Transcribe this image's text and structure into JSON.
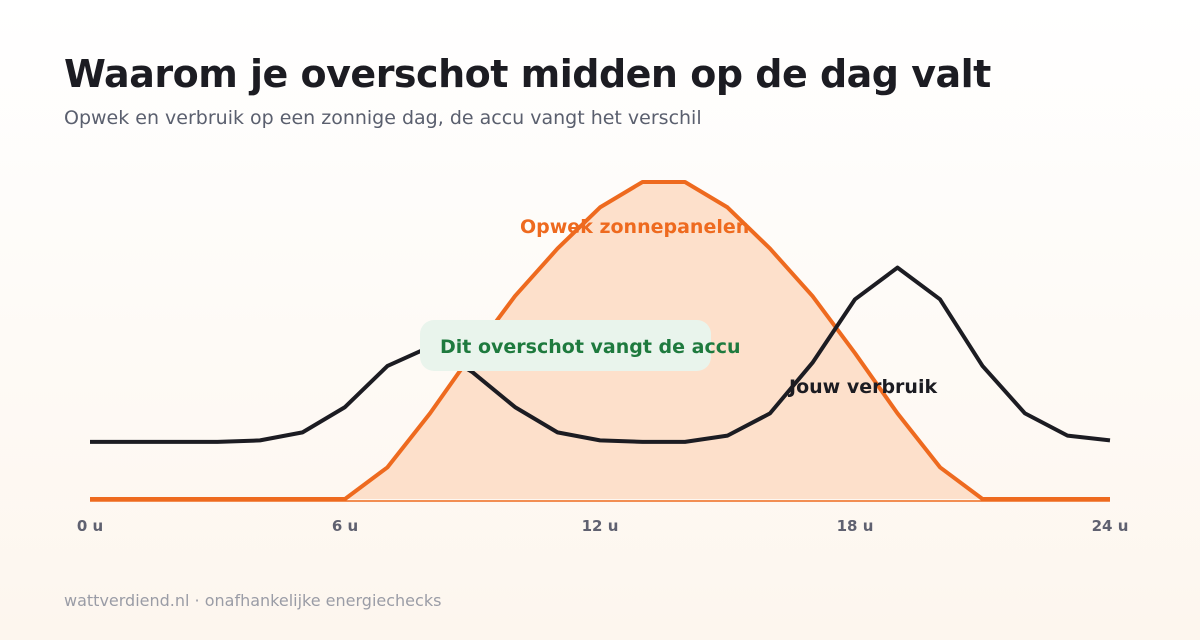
{
  "header": {
    "title": "Waarom je overschot midden op de dag valt",
    "subtitle": "Opwek en verbruik op een zonnige dag, de accu vangt het verschil"
  },
  "footer": {
    "text": "wattverdiend.nl · onafhankelijke energiechecks"
  },
  "colors": {
    "generation": "#ee6a1f",
    "generation_fill": "#fde0cb",
    "consumption": "#1c1c22",
    "callout_bg": "#e9f4ec",
    "callout_text": "#1e7a3e"
  },
  "chart_data": {
    "type": "area",
    "title": "Waarom je overschot midden op de dag valt",
    "subtitle": "Opwek en verbruik op een zonnige dag, de accu vangt het verschil",
    "x": [
      0,
      1,
      2,
      3,
      4,
      5,
      6,
      7,
      8,
      9,
      10,
      11,
      12,
      13,
      14,
      15,
      16,
      17,
      18,
      19,
      20,
      21,
      22,
      23,
      24
    ],
    "x_ticks": [
      0,
      6,
      12,
      18,
      24
    ],
    "x_tick_labels": [
      "0 u",
      "6 u",
      "12 u",
      "18 u",
      "24 u"
    ],
    "xlim": [
      0,
      24
    ],
    "ylim": [
      0,
      100
    ],
    "grid": false,
    "series": [
      {
        "name": "Opwek zonnepanelen",
        "style": "area",
        "values": [
          0,
          0,
          0,
          0,
          0,
          0,
          0,
          10,
          27,
          46,
          64,
          79,
          92,
          100,
          100,
          92,
          79,
          64,
          46,
          27,
          10,
          0,
          0,
          0,
          0
        ]
      },
      {
        "name": "Jouw verbruik",
        "style": "line",
        "values": [
          18,
          18,
          18,
          18,
          18.5,
          21,
          29,
          42,
          48,
          40,
          29,
          21,
          18.5,
          18,
          18,
          20,
          27,
          43,
          63,
          73,
          63,
          42,
          27,
          20,
          18.5
        ]
      }
    ],
    "annotations": [
      {
        "text": "Dit overschot vangt de accu"
      }
    ]
  }
}
